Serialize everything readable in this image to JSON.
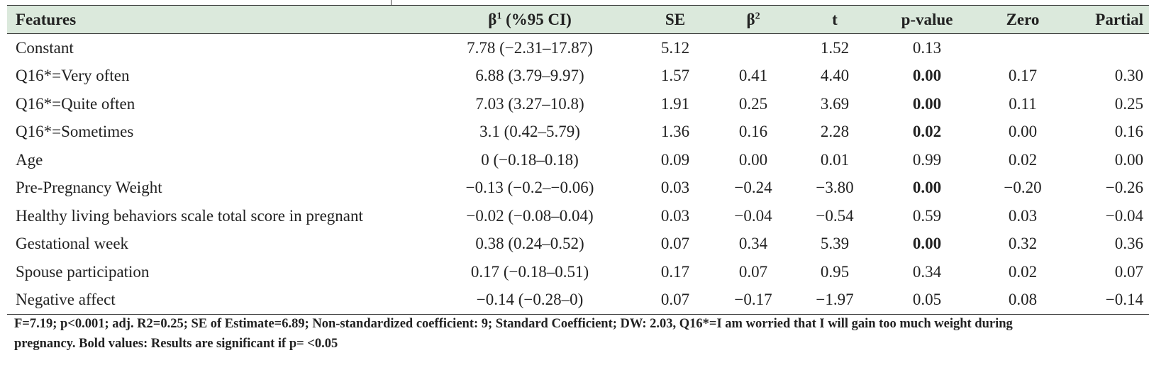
{
  "table": {
    "headers": [
      {
        "main": "Features",
        "sup": ""
      },
      {
        "main": "β",
        "sup": "1",
        "rest": " (%95 CI)"
      },
      {
        "main": "SE",
        "sup": ""
      },
      {
        "main": "β",
        "sup": "2"
      },
      {
        "main": "t",
        "sup": ""
      },
      {
        "main": "p-value",
        "sup": ""
      },
      {
        "main": "Zero",
        "sup": ""
      },
      {
        "main": "Partial",
        "sup": ""
      }
    ],
    "rows": [
      {
        "feature": "Constant",
        "beta_ci": "7.78 (−2.31–17.87)",
        "se": "5.12",
        "beta2": "",
        "t": "1.52",
        "p": "0.13",
        "p_bold": false,
        "zero": "",
        "partial": ""
      },
      {
        "feature": "Q16*=Very often",
        "beta_ci": "6.88 (3.79–9.97)",
        "se": "1.57",
        "beta2": "0.41",
        "t": "4.40",
        "p": "0.00",
        "p_bold": true,
        "zero": "0.17",
        "partial": "0.30"
      },
      {
        "feature": "Q16*=Quite often",
        "beta_ci": "7.03 (3.27–10.8)",
        "se": "1.91",
        "beta2": "0.25",
        "t": "3.69",
        "p": "0.00",
        "p_bold": true,
        "zero": "0.11",
        "partial": "0.25"
      },
      {
        "feature": "Q16*=Sometimes",
        "beta_ci": "3.1 (0.42–5.79)",
        "se": "1.36",
        "beta2": "0.16",
        "t": "2.28",
        "p": "0.02",
        "p_bold": true,
        "zero": "0.00",
        "partial": "0.16"
      },
      {
        "feature": "Age",
        "beta_ci": "0 (−0.18–0.18)",
        "se": "0.09",
        "beta2": "0.00",
        "t": "0.01",
        "p": "0.99",
        "p_bold": false,
        "zero": "0.02",
        "partial": "0.00"
      },
      {
        "feature": "Pre-Pregnancy Weight",
        "beta_ci": "−0.13 (−0.2–−0.06)",
        "se": "0.03",
        "beta2": "−0.24",
        "t": "−3.80",
        "p": "0.00",
        "p_bold": true,
        "zero": "−0.20",
        "partial": "−0.26"
      },
      {
        "feature": "Healthy living behaviors scale total score in pregnant",
        "beta_ci": "−0.02 (−0.08–0.04)",
        "se": "0.03",
        "beta2": "−0.04",
        "t": "−0.54",
        "p": "0.59",
        "p_bold": false,
        "zero": "0.03",
        "partial": "−0.04"
      },
      {
        "feature": "Gestational week",
        "beta_ci": "0.38 (0.24–0.52)",
        "se": "0.07",
        "beta2": "0.34",
        "t": "5.39",
        "p": "0.00",
        "p_bold": true,
        "zero": "0.32",
        "partial": "0.36"
      },
      {
        "feature": "Spouse participation",
        "beta_ci": "0.17 (−0.18–0.51)",
        "se": "0.17",
        "beta2": "0.07",
        "t": "0.95",
        "p": "0.34",
        "p_bold": false,
        "zero": "0.02",
        "partial": "0.07"
      },
      {
        "feature": "Negative affect",
        "beta_ci": "−0.14 (−0.28–0)",
        "se": "0.07",
        "beta2": "−0.17",
        "t": "−1.97",
        "p": "0.05",
        "p_bold": false,
        "zero": "0.08",
        "partial": "−0.14"
      }
    ]
  },
  "footnote": {
    "line1": "F=7.19; p<0.001; adj. R2=0.25; SE of Estimate=6.89; Non-standardized coefficient: 9; Standard Coefficient; DW: 2.03, Q16*=I am worried that I will gain too much weight during",
    "line2": "pregnancy. Bold values: Results are significant if p= <0.05"
  },
  "colors": {
    "header_background": "#dbe9dc",
    "rule": "#333333",
    "text": "#222222"
  }
}
